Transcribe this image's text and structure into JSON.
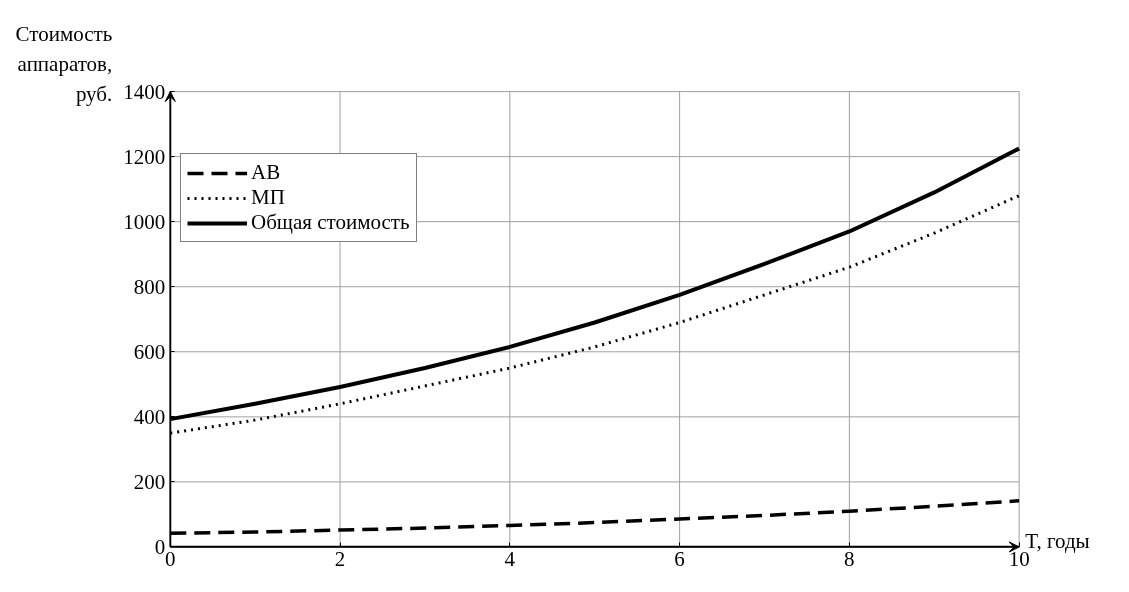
{
  "chart_data": {
    "type": "line",
    "xlabel": "T, годы",
    "ylabel": "Стоимость аппаратов, руб.",
    "x": [
      0,
      1,
      2,
      3,
      4,
      5,
      6,
      7,
      8,
      9,
      10
    ],
    "series": [
      {
        "name": "АВ",
        "color": "#000000",
        "line_style": "dashed",
        "values": [
          42,
          46,
          52,
          58,
          66,
          75,
          86,
          97,
          110,
          125,
          142
        ]
      },
      {
        "name": "МП",
        "color": "#000000",
        "line_style": "dotted",
        "values": [
          350,
          390,
          440,
          495,
          550,
          615,
          690,
          775,
          860,
          965,
          1080
        ]
      },
      {
        "name": "Общая стоимость",
        "color": "#000000",
        "line_style": "solid",
        "values": [
          393,
          440,
          492,
          550,
          615,
          690,
          775,
          870,
          970,
          1090,
          1225
        ]
      }
    ],
    "xlim": [
      0,
      10
    ],
    "ylim": [
      0,
      1400
    ],
    "xticks": [
      0,
      2,
      4,
      6,
      8,
      10
    ],
    "yticks": [
      0,
      200,
      400,
      600,
      800,
      1000,
      1200,
      1400
    ],
    "grid": true,
    "legend": "top left",
    "marker": "none"
  }
}
